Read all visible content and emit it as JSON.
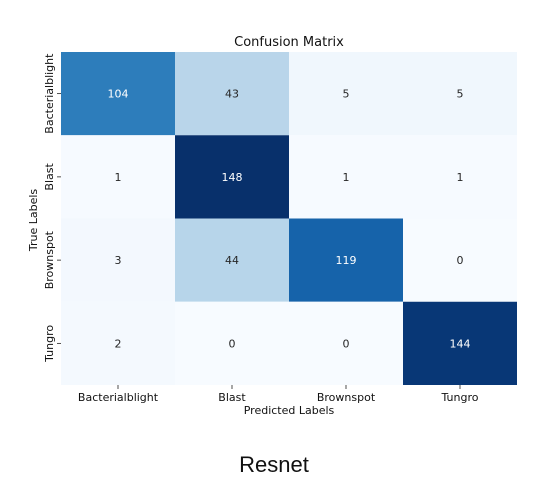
{
  "caption": "Resnet",
  "chart_data": {
    "type": "heatmap",
    "title": "Confusion Matrix",
    "xlabel": "Predicted Labels",
    "ylabel": "True Labels",
    "x_categories": [
      "Bacterialblight",
      "Blast",
      "Brownspot",
      "Tungro"
    ],
    "y_categories": [
      "Bacterialblight",
      "Blast",
      "Brownspot",
      "Tungro"
    ],
    "values": [
      [
        104,
        43,
        5,
        5
      ],
      [
        1,
        148,
        1,
        1
      ],
      [
        3,
        44,
        119,
        0
      ],
      [
        2,
        0,
        0,
        144
      ]
    ],
    "colormap": "Blues",
    "colorbar": false,
    "grid": false
  }
}
